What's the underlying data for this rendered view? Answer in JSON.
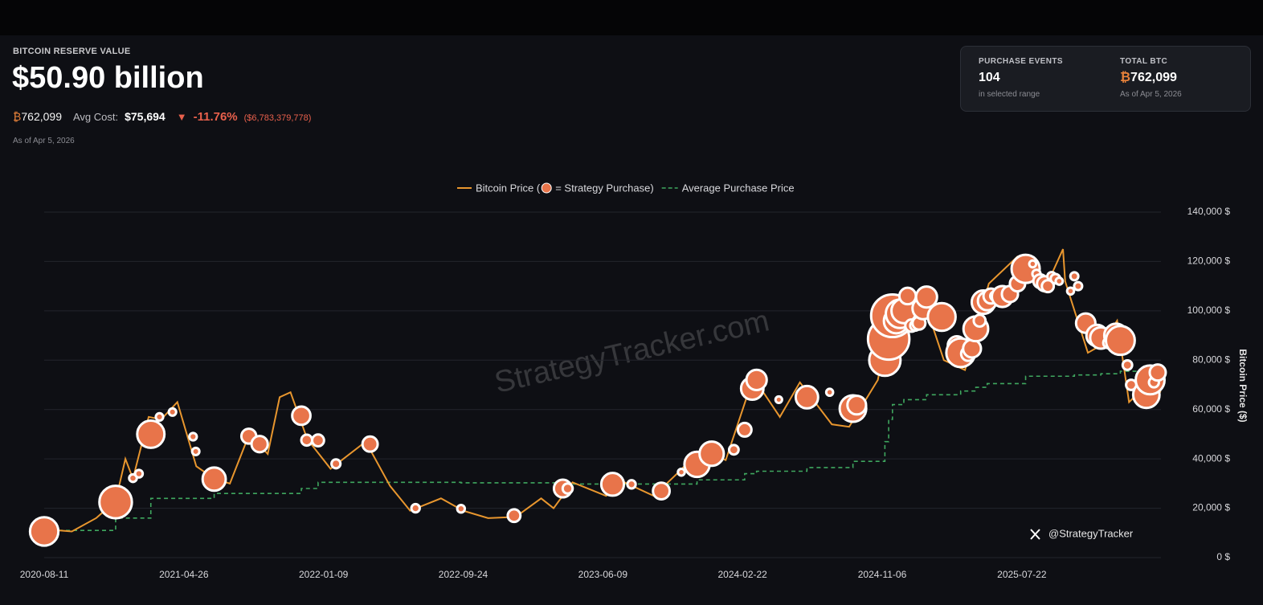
{
  "header": {
    "label": "BITCOIN RESERVE VALUE",
    "value": "$50.90 billion",
    "holdings": "₿762,099",
    "avg_cost_label": "Avg Cost:",
    "avg_cost": "$75,694",
    "change_arrow": "▼",
    "change_pct": "-11.76%",
    "change_usd": "($6,783,379,778)",
    "as_of": "As of Apr 5, 2026"
  },
  "summary_card": {
    "purchase_events_label": "PURCHASE EVENTS",
    "purchase_events": "104",
    "purchase_events_note": "in selected range",
    "total_btc_label": "TOTAL BTC",
    "total_btc": "₿762,099",
    "total_btc_note": "As of Apr 5, 2026"
  },
  "chart_data": {
    "type": "line",
    "watermark": "StrategyTracker.com",
    "credit": "@StrategyTracker",
    "y_label": "Bitcoin Price ($)",
    "xlim": [
      "2020-08-11",
      "2026-04-05"
    ],
    "xticks": [
      "2020-08-11",
      "2021-04-26",
      "2022-01-09",
      "2022-09-24",
      "2023-06-09",
      "2024-02-22",
      "2024-11-06",
      "2025-07-22"
    ],
    "ylim": [
      0,
      140000
    ],
    "yticks": [
      {
        "value": 0,
        "label": "0 $"
      },
      {
        "value": 20000,
        "label": "20,000 $"
      },
      {
        "value": 40000,
        "label": "40,000 $"
      },
      {
        "value": 60000,
        "label": "60,000 $"
      },
      {
        "value": 80000,
        "label": "80,000 $"
      },
      {
        "value": 100000,
        "label": "100,000 $"
      },
      {
        "value": 120000,
        "label": "120,000 $"
      },
      {
        "value": 140000,
        "label": "140,000 $"
      }
    ],
    "grid": true,
    "series": [
      {
        "name": "Bitcoin Price (",
        "color": "#e8962e",
        "kind": "line",
        "x": [
          "2020-08-11",
          "2020-10-01",
          "2020-11-15",
          "2020-12-21",
          "2021-01-08",
          "2021-01-22",
          "2021-02-20",
          "2021-03-15",
          "2021-04-14",
          "2021-05-19",
          "2021-06-21",
          "2021-07-20",
          "2021-08-23",
          "2021-09-07",
          "2021-09-28",
          "2021-10-20",
          "2021-11-09",
          "2021-12-10",
          "2022-01-22",
          "2022-03-28",
          "2022-05-12",
          "2022-06-18",
          "2022-08-14",
          "2022-09-24",
          "2022-11-09",
          "2022-12-30",
          "2023-02-15",
          "2023-03-10",
          "2023-04-14",
          "2023-06-15",
          "2023-07-14",
          "2023-09-11",
          "2023-10-24",
          "2023-12-08",
          "2024-01-22",
          "2024-03-13",
          "2024-05-01",
          "2024-06-07",
          "2024-08-05",
          "2024-09-06",
          "2024-10-29",
          "2024-11-22",
          "2024-12-17",
          "2025-01-21",
          "2025-02-28",
          "2025-04-08",
          "2025-05-22",
          "2025-07-14",
          "2025-08-14",
          "2025-09-01",
          "2025-10-06",
          "2025-10-10",
          "2025-11-21",
          "2025-12-15",
          "2026-01-14",
          "2026-02-05",
          "2026-03-10",
          "2026-04-05"
        ],
        "values": [
          11500,
          10600,
          16000,
          23000,
          40000,
          32000,
          57000,
          56000,
          63000,
          37000,
          32000,
          30000,
          49000,
          47000,
          42000,
          65000,
          67000,
          48000,
          36000,
          47000,
          29000,
          19000,
          24000,
          19000,
          16000,
          16500,
          24000,
          20000,
          30500,
          25000,
          31000,
          25000,
          34000,
          44000,
          39500,
          73000,
          57000,
          71000,
          54000,
          53000,
          72000,
          99000,
          106000,
          105000,
          80000,
          76000,
          111000,
          122000,
          120000,
          108000,
          125000,
          112000,
          83000,
          86000,
          96000,
          63000,
          70000,
          67000
        ]
      },
      {
        "name": "= Strategy Purchase)",
        "color": "#e8744a",
        "kind": "bubble",
        "x": [
          "2020-08-11",
          "2020-12-21",
          "2021-01-22",
          "2021-02-02",
          "2021-02-24",
          "2021-03-12",
          "2021-04-05",
          "2021-05-13",
          "2021-05-18",
          "2021-06-21",
          "2021-08-24",
          "2021-09-13",
          "2021-11-29",
          "2021-12-09",
          "2021-12-30",
          "2022-02-01",
          "2022-04-05",
          "2022-06-28",
          "2022-09-20",
          "2022-12-27",
          "2023-03-27",
          "2023-04-05",
          "2023-06-27",
          "2023-08-01",
          "2023-09-25",
          "2023-11-01",
          "2023-11-30",
          "2023-12-27",
          "2024-02-06",
          "2024-02-26",
          "2024-03-11",
          "2024-03-19",
          "2024-04-29",
          "2024-06-20",
          "2024-08-01",
          "2024-09-13",
          "2024-09-20",
          "2024-11-11",
          "2024-11-18",
          "2024-11-25",
          "2024-12-02",
          "2024-12-09",
          "2024-12-16",
          "2024-12-23",
          "2024-12-30",
          "2025-01-06",
          "2025-01-13",
          "2025-01-21",
          "2025-01-27",
          "2025-02-24",
          "2025-03-17",
          "2025-03-24",
          "2025-03-31",
          "2025-04-14",
          "2025-04-21",
          "2025-04-28",
          "2025-05-05",
          "2025-05-12",
          "2025-05-19",
          "2025-05-26",
          "2025-06-02",
          "2025-06-09",
          "2025-06-16",
          "2025-06-23",
          "2025-06-30",
          "2025-07-14",
          "2025-07-21",
          "2025-07-29",
          "2025-08-11",
          "2025-08-18",
          "2025-08-25",
          "2025-09-02",
          "2025-09-08",
          "2025-09-15",
          "2025-09-22",
          "2025-09-29",
          "2025-10-20",
          "2025-10-27",
          "2025-11-03",
          "2025-11-17",
          "2025-12-01",
          "2025-12-08",
          "2025-12-15",
          "2025-12-29",
          "2026-01-05",
          "2026-01-12",
          "2026-01-20",
          "2026-02-02",
          "2026-02-09",
          "2026-03-02",
          "2026-03-09",
          "2026-03-16",
          "2026-03-23",
          "2026-03-30"
        ],
        "values": [
          10600,
          22500,
          32200,
          34000,
          50000,
          57000,
          59000,
          49000,
          43000,
          31800,
          49200,
          46000,
          57500,
          47600,
          47500,
          38000,
          46000,
          20000,
          19800,
          17000,
          28000,
          28000,
          29700,
          29700,
          27000,
          34600,
          37800,
          42100,
          43700,
          51800,
          68500,
          72000,
          64000,
          65000,
          67000,
          60400,
          61800,
          80000,
          88600,
          98000,
          95900,
          98800,
          100000,
          106000,
          94000,
          94000,
          95000,
          101000,
          105600,
          97500,
          84000,
          86000,
          83000,
          82600,
          84700,
          92700,
          96000,
          103500,
          104000,
          106000,
          106000,
          105000,
          105800,
          105800,
          106800,
          111000,
          118000,
          117000,
          119000,
          115000,
          112000,
          111000,
          110000,
          114000,
          113000,
          112000,
          108000,
          114000,
          110000,
          95000,
          92000,
          90000,
          89000,
          87000,
          91000,
          90000,
          88000,
          78000,
          70000,
          67000,
          66000,
          72000,
          71000,
          75000
        ],
        "sizes": [
          21454,
          29646,
          314,
          295,
          19452,
          262,
          253,
          271,
          229,
          13005,
          3907,
          5050,
          7002,
          1434,
          1914,
          660,
          4167,
          480,
          301,
          2395,
          6455,
          1045,
          12333,
          467,
          5445,
          155,
          16130,
          14620,
          850,
          3000,
          12000,
          9245,
          122,
          11931,
          169,
          18300,
          7420,
          27200,
          51780,
          55500,
          15400,
          21550,
          15350,
          5262,
          2138,
          1070,
          2530,
          11000,
          10107,
          20356,
          130,
          6911,
          22048,
          3459,
          6556,
          15355,
          1895,
          13390,
          7390,
          4020,
          705,
          1045,
          10100,
          245,
          4980,
          4225,
          6220,
          21021,
          155,
          430,
          3081,
          4048,
          1955,
          525,
          850,
          196,
          168,
          390,
          397,
          8178,
          130,
          10624,
          10645,
          1229,
          1287,
          13627,
          22305,
          855,
          1142,
          3015,
          17994,
          22337,
          1031,
          4871
        ]
      },
      {
        "name": "Average Purchase Price",
        "color": "#3fa75f",
        "kind": "step",
        "x": [
          "2020-08-11",
          "2020-12-21",
          "2021-02-24",
          "2021-06-21",
          "2021-11-29",
          "2021-12-30",
          "2022-09-20",
          "2023-03-27",
          "2023-11-30",
          "2024-02-26",
          "2024-03-19",
          "2024-06-20",
          "2024-09-13",
          "2024-11-11",
          "2024-11-18",
          "2024-11-25",
          "2024-12-16",
          "2025-01-27",
          "2025-03-31",
          "2025-04-28",
          "2025-05-19",
          "2025-07-29",
          "2025-10-27",
          "2025-12-15",
          "2026-01-20",
          "2026-03-16",
          "2026-04-05"
        ],
        "values": [
          11000,
          16000,
          24000,
          26000,
          28000,
          30500,
          30300,
          29800,
          31500,
          34000,
          35000,
          36500,
          39000,
          47000,
          56000,
          62000,
          64000,
          66000,
          67500,
          69000,
          70500,
          73500,
          74000,
          74500,
          75500,
          75694,
          75694
        ]
      }
    ]
  }
}
